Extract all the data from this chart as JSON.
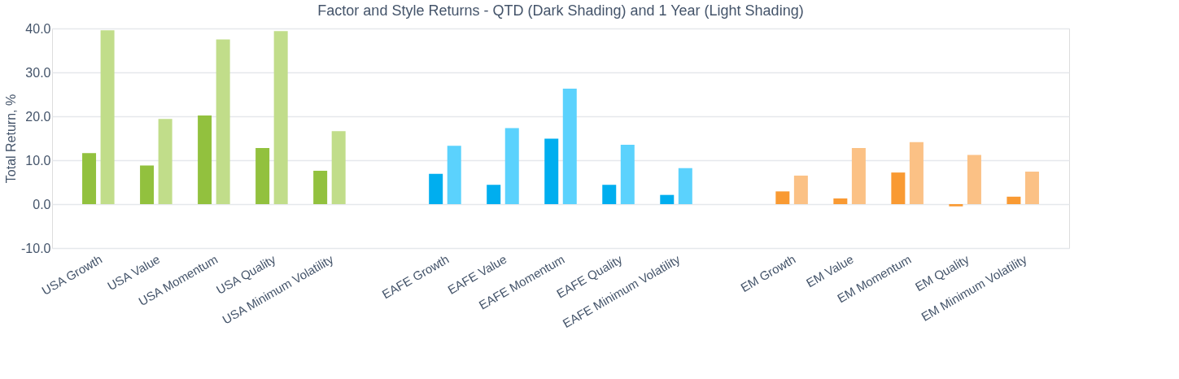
{
  "chart_data": {
    "type": "bar",
    "title": "Factor and Style Returns - QTD (Dark Shading) and 1 Year (Light Shading)",
    "ylabel": "Total Return, %",
    "categories": [
      "USA Growth",
      "USA Value",
      "USA Momentum",
      "USA Quality",
      "USA Minimum Volatility",
      null,
      "EAFE Growth",
      "EAFE Value",
      "EAFE Momentum",
      "EAFE Quality",
      "EAFE Minimum Volatility",
      null,
      "EM Growth",
      "EM Value",
      "EM Momentum",
      "EM Quality",
      "EM Minimum Volatility"
    ],
    "series": [
      {
        "values": [
          11.6,
          8.8,
          20.2,
          12.8,
          7.6,
          null,
          6.9,
          4.4,
          14.9,
          4.4,
          2.1,
          null,
          2.9,
          1.3,
          7.2,
          -0.5,
          1.7
        ],
        "colors": [
          "#92c13e",
          "#92c13e",
          "#92c13e",
          "#92c13e",
          "#92c13e",
          null,
          "#00aeef",
          "#00aeef",
          "#00aeef",
          "#00aeef",
          "#00aeef",
          null,
          "#f99a33",
          "#f99a33",
          "#f99a33",
          "#f99a33",
          "#f99a33"
        ]
      },
      {
        "values": [
          39.6,
          19.4,
          37.5,
          39.4,
          16.6,
          null,
          13.3,
          17.3,
          26.3,
          13.5,
          8.2,
          null,
          6.5,
          12.8,
          14.1,
          11.2,
          7.4
        ],
        "colors": [
          "#c1dd8a",
          "#c1dd8a",
          "#c1dd8a",
          "#c1dd8a",
          "#c1dd8a",
          null,
          "#5bd2fd",
          "#5bd2fd",
          "#5bd2fd",
          "#5bd2fd",
          "#5bd2fd",
          null,
          "#fbc185",
          "#fbc185",
          "#fbc185",
          "#fbc185",
          "#fbc185"
        ]
      }
    ],
    "ylim": [
      -10,
      40
    ],
    "yticks": [
      {
        "value": -10,
        "label": "-10.0"
      },
      {
        "value": 0,
        "label": "0.0"
      },
      {
        "value": 10,
        "label": "10.0"
      },
      {
        "value": 20,
        "label": "20.0"
      },
      {
        "value": 30,
        "label": "30.0"
      },
      {
        "value": 40,
        "label": "40.0"
      }
    ],
    "grid": "y"
  }
}
